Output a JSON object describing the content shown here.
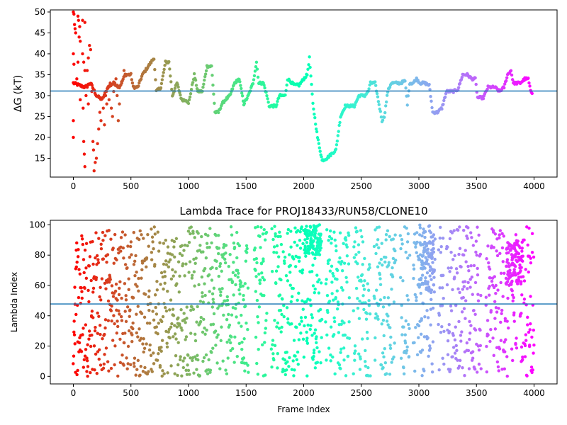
{
  "chart_data": [
    {
      "type": "scatter",
      "title": "",
      "xlabel": "",
      "ylabel": "ΔG (kT)",
      "xlim": [
        -200,
        4200
      ],
      "ylim": [
        10.5,
        50.5
      ],
      "xticks": [
        0,
        500,
        1000,
        1500,
        2000,
        2500,
        3000,
        3500,
        4000
      ],
      "yticks": [
        15,
        20,
        25,
        30,
        35,
        40,
        45,
        50
      ],
      "hline": 31.1,
      "colormap": "rainbow",
      "n_frames": 4000,
      "trace": [
        [
          0,
          33
        ],
        [
          100,
          32
        ],
        [
          150,
          33
        ],
        [
          200,
          30
        ],
        [
          250,
          29
        ],
        [
          300,
          32
        ],
        [
          350,
          33
        ],
        [
          400,
          32
        ],
        [
          450,
          35
        ],
        [
          500,
          35
        ],
        [
          520,
          32
        ],
        [
          560,
          32
        ],
        [
          600,
          35
        ],
        [
          650,
          37
        ],
        [
          700,
          39
        ],
        [
          720,
          31
        ],
        [
          760,
          32
        ],
        [
          800,
          38
        ],
        [
          830,
          38
        ],
        [
          860,
          30
        ],
        [
          900,
          33
        ],
        [
          940,
          29
        ],
        [
          980,
          29
        ],
        [
          1000,
          28
        ],
        [
          1050,
          35
        ],
        [
          1080,
          31
        ],
        [
          1120,
          31
        ],
        [
          1160,
          37
        ],
        [
          1200,
          37
        ],
        [
          1230,
          26
        ],
        [
          1260,
          26
        ],
        [
          1290,
          28
        ],
        [
          1320,
          29
        ],
        [
          1360,
          30
        ],
        [
          1400,
          33
        ],
        [
          1440,
          34
        ],
        [
          1480,
          28
        ],
        [
          1520,
          30
        ],
        [
          1560,
          33
        ],
        [
          1590,
          38
        ],
        [
          1610,
          33
        ],
        [
          1650,
          33
        ],
        [
          1680,
          30
        ],
        [
          1700,
          27.5
        ],
        [
          1760,
          27.5
        ],
        [
          1790,
          30
        ],
        [
          1840,
          30
        ],
        [
          1860,
          34
        ],
        [
          1920,
          32.5
        ],
        [
          1960,
          32.5
        ],
        [
          2000,
          34
        ],
        [
          2030,
          35
        ],
        [
          2050,
          39
        ],
        [
          2080,
          28
        ],
        [
          2120,
          20
        ],
        [
          2160,
          14.5
        ],
        [
          2200,
          15
        ],
        [
          2240,
          16
        ],
        [
          2280,
          17
        ],
        [
          2320,
          25
        ],
        [
          2360,
          27.5
        ],
        [
          2440,
          27.5
        ],
        [
          2480,
          30
        ],
        [
          2530,
          30
        ],
        [
          2560,
          31
        ],
        [
          2580,
          33
        ],
        [
          2620,
          33
        ],
        [
          2660,
          27
        ],
        [
          2680,
          24
        ],
        [
          2700,
          25
        ],
        [
          2730,
          31
        ],
        [
          2760,
          33
        ],
        [
          2840,
          33
        ],
        [
          2880,
          33.5
        ],
        [
          2900,
          28
        ],
        [
          2920,
          33
        ],
        [
          2950,
          33
        ],
        [
          2980,
          34
        ],
        [
          3010,
          33
        ],
        [
          3050,
          33
        ],
        [
          3090,
          32.5
        ],
        [
          3120,
          26
        ],
        [
          3160,
          26
        ],
        [
          3200,
          27
        ],
        [
          3240,
          31
        ],
        [
          3300,
          31
        ],
        [
          3340,
          31.5
        ],
        [
          3380,
          35
        ],
        [
          3420,
          35
        ],
        [
          3460,
          34
        ],
        [
          3490,
          34
        ],
        [
          3510,
          29.5
        ],
        [
          3560,
          29.5
        ],
        [
          3600,
          32
        ],
        [
          3660,
          32
        ],
        [
          3700,
          31
        ],
        [
          3740,
          32
        ],
        [
          3770,
          35
        ],
        [
          3800,
          36
        ],
        [
          3820,
          33
        ],
        [
          3880,
          33
        ],
        [
          3920,
          34
        ],
        [
          3950,
          34
        ],
        [
          3970,
          31
        ],
        [
          3990,
          30.5
        ]
      ],
      "scattered_points": [
        [
          0,
          50
        ],
        [
          5,
          49.5
        ],
        [
          10,
          47
        ],
        [
          15,
          46
        ],
        [
          20,
          45
        ],
        [
          0,
          40
        ],
        [
          5,
          37.5
        ],
        [
          10,
          33
        ],
        [
          0,
          24
        ],
        [
          0,
          20
        ],
        [
          40,
          49
        ],
        [
          45,
          48
        ],
        [
          55,
          46.5
        ],
        [
          50,
          44
        ],
        [
          60,
          43
        ],
        [
          40,
          38
        ],
        [
          30,
          34
        ],
        [
          60,
          29
        ],
        [
          80,
          48
        ],
        [
          100,
          47.5
        ],
        [
          80,
          40
        ],
        [
          90,
          38
        ],
        [
          100,
          36
        ],
        [
          120,
          36
        ],
        [
          110,
          30
        ],
        [
          85,
          27
        ],
        [
          90,
          19
        ],
        [
          95,
          16
        ],
        [
          100,
          13
        ],
        [
          140,
          42
        ],
        [
          150,
          41
        ],
        [
          130,
          39
        ],
        [
          120,
          32
        ],
        [
          130,
          28
        ],
        [
          160,
          31
        ],
        [
          170,
          19
        ],
        [
          175,
          17
        ],
        [
          180,
          12
        ],
        [
          190,
          14
        ],
        [
          200,
          15
        ],
        [
          210,
          18.5
        ],
        [
          220,
          22
        ],
        [
          230,
          26
        ],
        [
          240,
          24
        ],
        [
          260,
          27
        ],
        [
          270,
          23
        ],
        [
          280,
          30
        ],
        [
          290,
          28
        ],
        [
          300,
          32
        ],
        [
          310,
          29
        ],
        [
          320,
          33
        ],
        [
          330,
          27
        ],
        [
          340,
          25
        ],
        [
          350,
          31
        ],
        [
          360,
          33
        ],
        [
          370,
          34
        ],
        [
          380,
          30
        ],
        [
          390,
          24
        ],
        [
          400,
          28
        ],
        [
          420,
          33
        ],
        [
          440,
          36
        ]
      ]
    },
    {
      "type": "scatter",
      "title": "Lambda Trace for PROJ18433/RUN58/CLONE10",
      "xlabel": "Frame Index",
      "ylabel": "Lambda Index",
      "xlim": [
        -200,
        4200
      ],
      "ylim": [
        -5,
        103
      ],
      "xticks": [
        0,
        500,
        1000,
        1500,
        2000,
        2500,
        3000,
        3500,
        4000
      ],
      "yticks": [
        0,
        20,
        40,
        60,
        80,
        100
      ],
      "hline": 47.8,
      "colormap": "rainbow",
      "n_frames": 4000,
      "gaps": [
        [
          1520,
          1570
        ],
        [
          1680,
          1720
        ],
        [
          2040,
          2050
        ],
        [
          2160,
          2190
        ],
        [
          2400,
          2430
        ],
        [
          2580,
          2610
        ],
        [
          2800,
          2840
        ],
        [
          2920,
          2950
        ],
        [
          3130,
          3170
        ],
        [
          3220,
          3240
        ],
        [
          3540,
          3580
        ],
        [
          3780,
          3800
        ],
        [
          3850,
          3880
        ]
      ],
      "dense_high": [
        [
          2010,
          2150,
          80,
          100
        ],
        [
          3000,
          3140,
          55,
          100
        ],
        [
          3760,
          3900,
          60,
          90
        ]
      ]
    }
  ]
}
